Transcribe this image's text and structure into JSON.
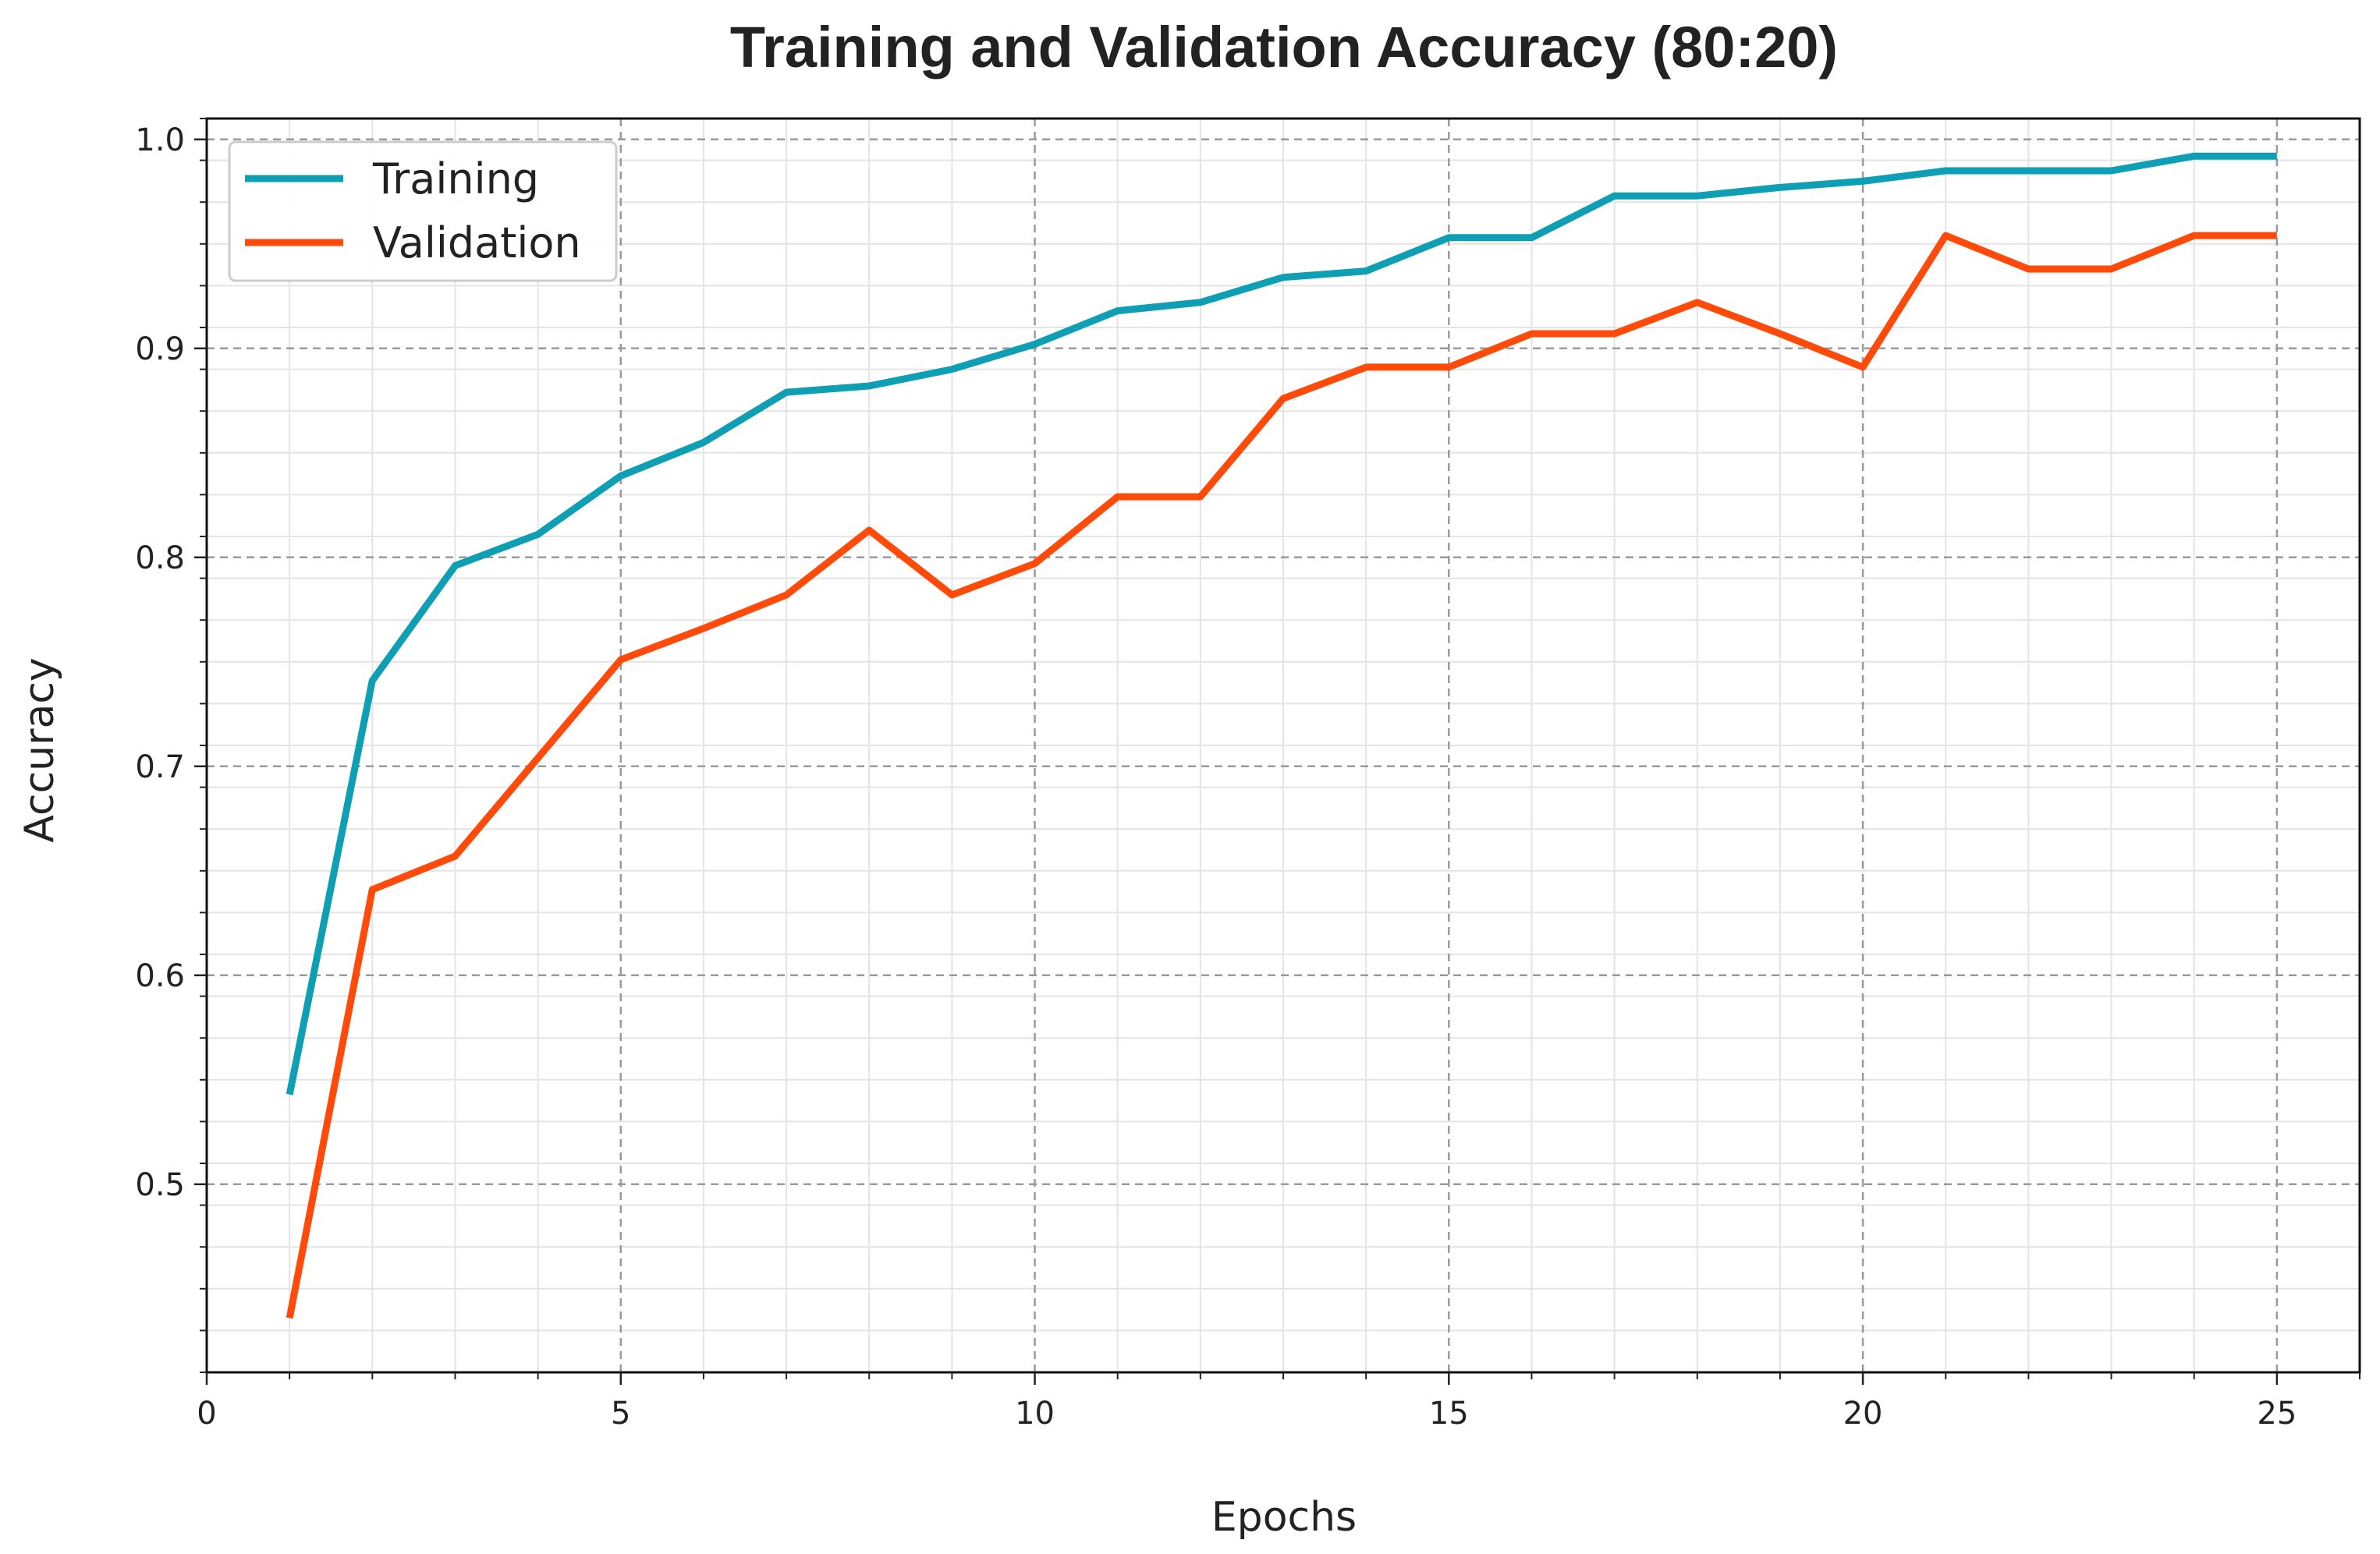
{
  "chart_data": {
    "type": "line",
    "title": "Training and Validation Accuracy (80:20)",
    "xlabel": "Epochs",
    "ylabel": "Accuracy",
    "xlim": [
      0,
      26
    ],
    "ylim": [
      0.41,
      1.01
    ],
    "x_ticks": [
      0,
      5,
      10,
      15,
      20,
      25
    ],
    "x_tick_labels": [
      "0",
      "5",
      "10",
      "15",
      "20",
      "25"
    ],
    "y_ticks": [
      0.5,
      0.6,
      0.7,
      0.8,
      0.9,
      1.0
    ],
    "y_tick_labels": [
      "0.5",
      "0.6",
      "0.7",
      "0.8",
      "0.9",
      "1.0"
    ],
    "grid": true,
    "legend_position": "top-left",
    "x": [
      1,
      2,
      3,
      4,
      5,
      6,
      7,
      8,
      9,
      10,
      11,
      12,
      13,
      14,
      15,
      16,
      17,
      18,
      19,
      20,
      21,
      22,
      23,
      24,
      25
    ],
    "series": [
      {
        "name": "Training",
        "color": "#0e9fb5",
        "values": [
          0.543,
          0.741,
          0.796,
          0.811,
          0.839,
          0.855,
          0.879,
          0.882,
          0.89,
          0.902,
          0.918,
          0.922,
          0.934,
          0.937,
          0.953,
          0.953,
          0.973,
          0.973,
          0.977,
          0.98,
          0.985,
          0.985,
          0.985,
          0.992,
          0.992
        ]
      },
      {
        "name": "Validation",
        "color": "#ff4a0a",
        "values": [
          0.436,
          0.641,
          0.657,
          0.704,
          0.751,
          0.766,
          0.782,
          0.813,
          0.782,
          0.797,
          0.829,
          0.829,
          0.876,
          0.891,
          0.891,
          0.907,
          0.907,
          0.922,
          0.907,
          0.891,
          0.954,
          0.938,
          0.938,
          0.954,
          0.954
        ]
      }
    ]
  }
}
